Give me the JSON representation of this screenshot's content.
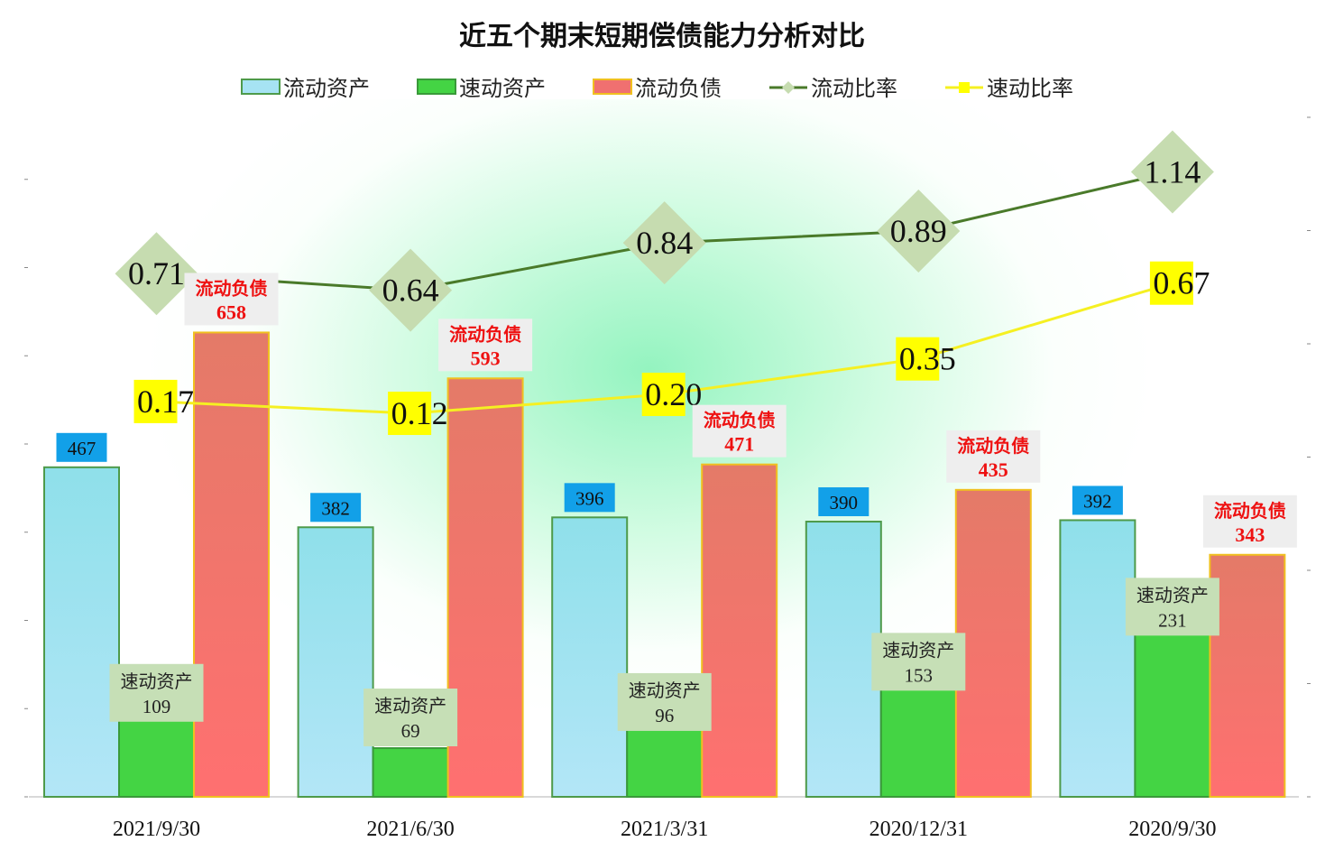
{
  "chart_data": {
    "type": "bar",
    "title": "近五个期末短期偿债能力分析对比",
    "categories": [
      "2021/9/30",
      "2021/6/30",
      "2021/3/31",
      "2020/12/31",
      "2020/9/30"
    ],
    "series": [
      {
        "name": "流动资产",
        "kind": "bar",
        "values": [
          467,
          382,
          396,
          390,
          392
        ],
        "color": "#a6e3f3",
        "border": "#4e9a4a",
        "label_bg": "#12a0e8"
      },
      {
        "name": "速动资产",
        "kind": "bar",
        "values": [
          109,
          69,
          96,
          153,
          231
        ],
        "color": "#44d444",
        "border": "#3a9a3a",
        "label_bg": "#c6dfb6",
        "label_prefix": "速动资产"
      },
      {
        "name": "流动负债",
        "kind": "bar",
        "values": [
          658,
          593,
          471,
          435,
          343
        ],
        "color": "#f07070",
        "border": "#f0c020",
        "label_bg": "#eeeeee",
        "label_prefix": "流动负债",
        "label_color": "#ee1111"
      },
      {
        "name": "流动比率",
        "kind": "line",
        "values": [
          0.71,
          0.64,
          0.84,
          0.89,
          1.14
        ],
        "color": "#4a7a2a",
        "marker_color": "#c6dcb0"
      },
      {
        "name": "速动比率",
        "kind": "line",
        "values": [
          0.17,
          0.12,
          0.2,
          0.35,
          0.67
        ],
        "color": "#f5f022",
        "marker_color": "#ffff00"
      }
    ],
    "bar_axis": {
      "ylim": [
        0,
        1000
      ]
    },
    "line_axis": {
      "ylim": [
        -1.5,
        1.5
      ]
    },
    "legend_position": "top-center",
    "grid": false
  }
}
